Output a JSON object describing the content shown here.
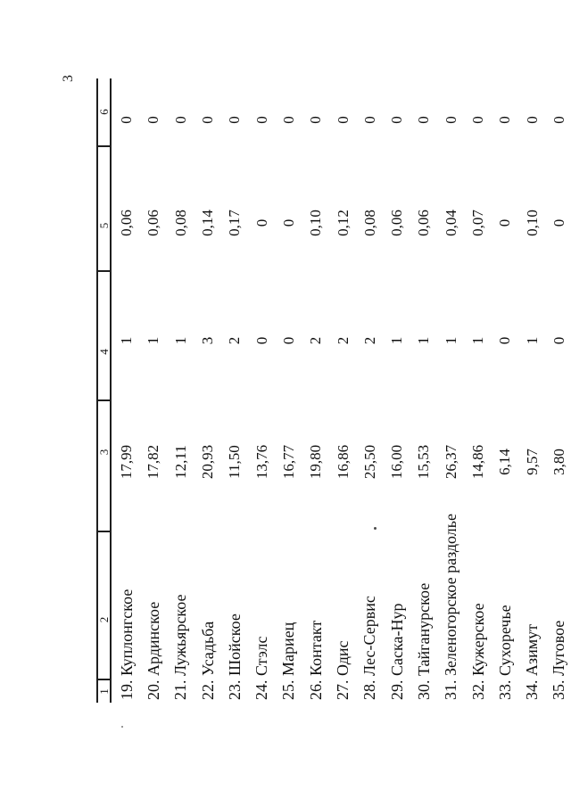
{
  "page": {
    "number": "3"
  },
  "table": {
    "headers": [
      "1",
      "2",
      "3",
      "4",
      "5",
      "6"
    ],
    "rows": [
      {
        "name": "19. Куплонгское",
        "c3": "17,99",
        "c4": "1",
        "c5": "0,06",
        "c6": "0"
      },
      {
        "name": "20. Ардинское",
        "c3": "17,82",
        "c4": "1",
        "c5": "0,06",
        "c6": "0"
      },
      {
        "name": "21. Лужьярское",
        "c3": "12,11",
        "c4": "1",
        "c5": "0,08",
        "c6": "0"
      },
      {
        "name": "22. Усадьба",
        "c3": "20,93",
        "c4": "3",
        "c5": "0,14",
        "c6": "0"
      },
      {
        "name": "23. Шойское",
        "c3": "11,50",
        "c4": "2",
        "c5": "0,17",
        "c6": "0"
      },
      {
        "name": "24. Стэлс",
        "c3": "13,76",
        "c4": "0",
        "c5": "0",
        "c6": "0"
      },
      {
        "name": "25. Мариец",
        "c3": "16,77",
        "c4": "0",
        "c5": "0",
        "c6": "0"
      },
      {
        "name": "26. Контакт",
        "c3": "19,80",
        "c4": "2",
        "c5": "0,10",
        "c6": "0"
      },
      {
        "name": "27. Одис",
        "c3": "16,86",
        "c4": "2",
        "c5": "0,12",
        "c6": "0"
      },
      {
        "name": "28. Лес-Сервис",
        "c3": "25,50",
        "c4": "2",
        "c5": "0,08",
        "c6": "0"
      },
      {
        "name": "29. Саска-Нур",
        "c3": "16,00",
        "c4": "1",
        "c5": "0,06",
        "c6": "0"
      },
      {
        "name": "30. Тайганурское",
        "c3": "15,53",
        "c4": "1",
        "c5": "0,06",
        "c6": "0"
      },
      {
        "name": "31. Зеленогорское раздолье",
        "c3": "26,37",
        "c4": "1",
        "c5": "0,04",
        "c6": "0"
      },
      {
        "name": "32. Кужерское",
        "c3": "14,86",
        "c4": "1",
        "c5": "0,07",
        "c6": "0"
      },
      {
        "name": "33. Сухоречье",
        "c3": "6,14",
        "c4": "0",
        "c5": "0",
        "c6": "0"
      },
      {
        "name": "34. Азимут",
        "c3": "9,57",
        "c4": "1",
        "c5": "0,10",
        "c6": "0"
      },
      {
        "name": "35. Луговое",
        "c3": "3,80",
        "c4": "0",
        "c5": "0",
        "c6": "0"
      }
    ]
  }
}
